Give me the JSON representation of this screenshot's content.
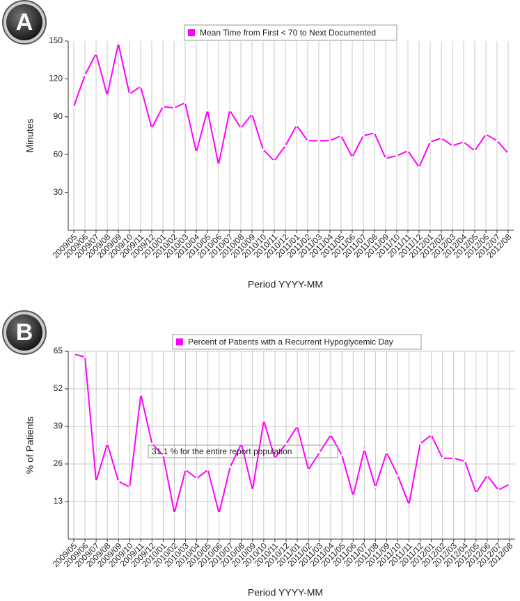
{
  "chart_data": [
    {
      "type": "line",
      "panel": "A",
      "legend_title": "Mean Time from First < 70 to Next Documented",
      "y_label": "Minutes",
      "x_label": "Period YYYY-MM",
      "categories": [
        "2009/05",
        "2009/06",
        "2009/07",
        "2009/08",
        "2009/09",
        "2009/10",
        "2009/11",
        "2009/12",
        "2010/01",
        "2010/02",
        "2010/03",
        "2010/04",
        "2010/05",
        "2010/06",
        "2010/07",
        "2010/08",
        "2010/09",
        "2010/10",
        "2010/11",
        "2010/12",
        "2011/01",
        "2011/02",
        "2011/03",
        "2011/04",
        "2011/05",
        "2011/06",
        "2011/07",
        "2011/08",
        "2011/09",
        "2011/10",
        "2011/11",
        "2011/12",
        "2012/01",
        "2012/02",
        "2012/03",
        "2012/04",
        "2012/05",
        "2012/06",
        "2012/07",
        "2012/08"
      ],
      "series": [
        {
          "name": "Mean Time from First < 70 to Next Documented",
          "color": "#ff00ff",
          "values": [
            98,
            123,
            140,
            107,
            148,
            108,
            114,
            81,
            98,
            97,
            101,
            62,
            95,
            52,
            95,
            81,
            92,
            64,
            55,
            67,
            83,
            71,
            71,
            71,
            75,
            58,
            75,
            77,
            57,
            59,
            63,
            50,
            70,
            73,
            67,
            70,
            63,
            76,
            71,
            61
          ]
        }
      ],
      "ylim": [
        0,
        150
      ],
      "yticks": [
        30,
        60,
        90,
        120,
        150
      ],
      "grid_x": true,
      "grid_y": false
    },
    {
      "type": "line",
      "panel": "B",
      "legend_title": "Percent of Patients with a Recurrent Hypoglycemic Day",
      "y_label": "% of Patients",
      "x_label": "Period YYYY-MM",
      "annotation": "31.1 % for the entire report population",
      "categories": [
        "2009/05",
        "2009/06",
        "2009/07",
        "2009/08",
        "2009/09",
        "2009/10",
        "2009/11",
        "2009/12",
        "2010/01",
        "2010/02",
        "2010/03",
        "2010/04",
        "2010/05",
        "2010/06",
        "2010/07",
        "2010/08",
        "2010/09",
        "2010/10",
        "2010/11",
        "2010/12",
        "2011/01",
        "2011/02",
        "2011/03",
        "2011/04",
        "2011/05",
        "2011/06",
        "2011/07",
        "2011/08",
        "2011/09",
        "2011/10",
        "2011/11",
        "2011/12",
        "2012/01",
        "2012/02",
        "2012/03",
        "2012/04",
        "2012/05",
        "2012/06",
        "2012/07",
        "2012/08"
      ],
      "series": [
        {
          "name": "Percent of Patients with a Recurrent Hypoglycemic Day",
          "color": "#ff00ff",
          "values": [
            64,
            63,
            20,
            33,
            20,
            18,
            50,
            33,
            29,
            9,
            24,
            21,
            24,
            9,
            25,
            33,
            17,
            41,
            28,
            33,
            39,
            24,
            30,
            36,
            29,
            15,
            31,
            18,
            30,
            22,
            12,
            33,
            36,
            28,
            28,
            27,
            16,
            22,
            17,
            19
          ]
        }
      ],
      "ylim": [
        0,
        65
      ],
      "yticks": [
        13,
        26,
        39,
        52,
        65
      ],
      "grid_x": true,
      "grid_y": true
    }
  ]
}
